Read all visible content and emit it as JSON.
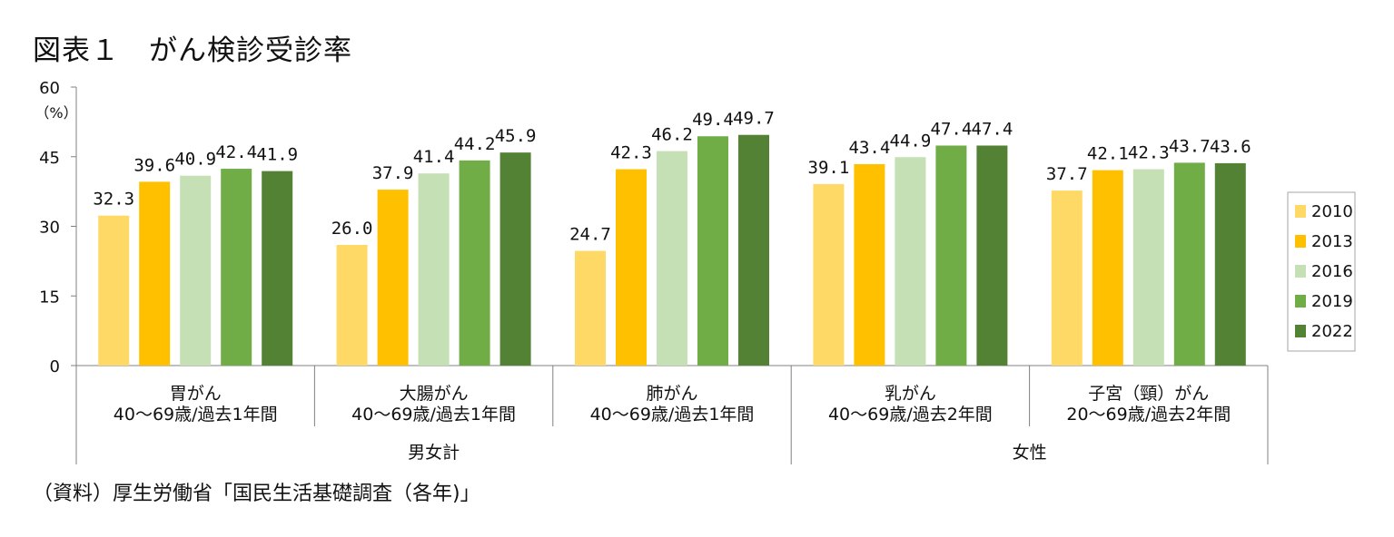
{
  "title": "図表１　がん検診受診率",
  "source": "（資料）厚生労働省「国民生活基礎調査（各年)」",
  "colors": {
    "2010": "#FFD966",
    "2013": "#FFC000",
    "2016": "#C5E0B4",
    "2019": "#70AD47",
    "2022": "#548235",
    "axis": "#808080"
  },
  "chart_data": {
    "type": "bar",
    "ylim": [
      0,
      60
    ],
    "yticks": [
      "0",
      "15",
      "30",
      "45",
      "60"
    ],
    "yunit": "（%）",
    "legend_position": "right",
    "categories": [
      {
        "line1": "胃がん",
        "line2": "40～69歳/過去1年間",
        "group": "男女計"
      },
      {
        "line1": "大腸がん",
        "line2": "40～69歳/過去1年間",
        "group": "男女計"
      },
      {
        "line1": "肺がん",
        "line2": "40～69歳/過去1年間",
        "group": "男女計"
      },
      {
        "line1": "乳がん",
        "line2": "40～69歳/過去2年間",
        "group": "女性"
      },
      {
        "line1": "子宮（頸）がん",
        "line2": "20～69歳/過去2年間",
        "group": "女性"
      }
    ],
    "groups": [
      "男女計",
      "女性"
    ],
    "series": [
      {
        "name": "2010",
        "values": [
          32.3,
          26.0,
          24.7,
          39.1,
          37.7
        ]
      },
      {
        "name": "2013",
        "values": [
          39.6,
          37.9,
          42.3,
          43.4,
          42.1
        ]
      },
      {
        "name": "2016",
        "values": [
          40.9,
          41.4,
          46.2,
          44.9,
          42.3
        ]
      },
      {
        "name": "2019",
        "values": [
          42.4,
          44.2,
          49.4,
          47.4,
          43.7
        ]
      },
      {
        "name": "2022",
        "values": [
          41.9,
          45.9,
          49.7,
          47.4,
          43.6
        ]
      }
    ],
    "value_labels": [
      [
        "32.3",
        "26.0",
        "24.7",
        "39.1",
        "37.7"
      ],
      [
        "39.6",
        "37.9",
        "42.3",
        "43.4",
        "42.1"
      ],
      [
        "40.9",
        "41.4",
        "46.2",
        "44.9",
        "42.3"
      ],
      [
        "42.4",
        "44.2",
        "49.4",
        "47.4",
        "43.7"
      ],
      [
        "41.9",
        "45.9",
        "49.7",
        "47.4",
        "43.6"
      ]
    ]
  }
}
